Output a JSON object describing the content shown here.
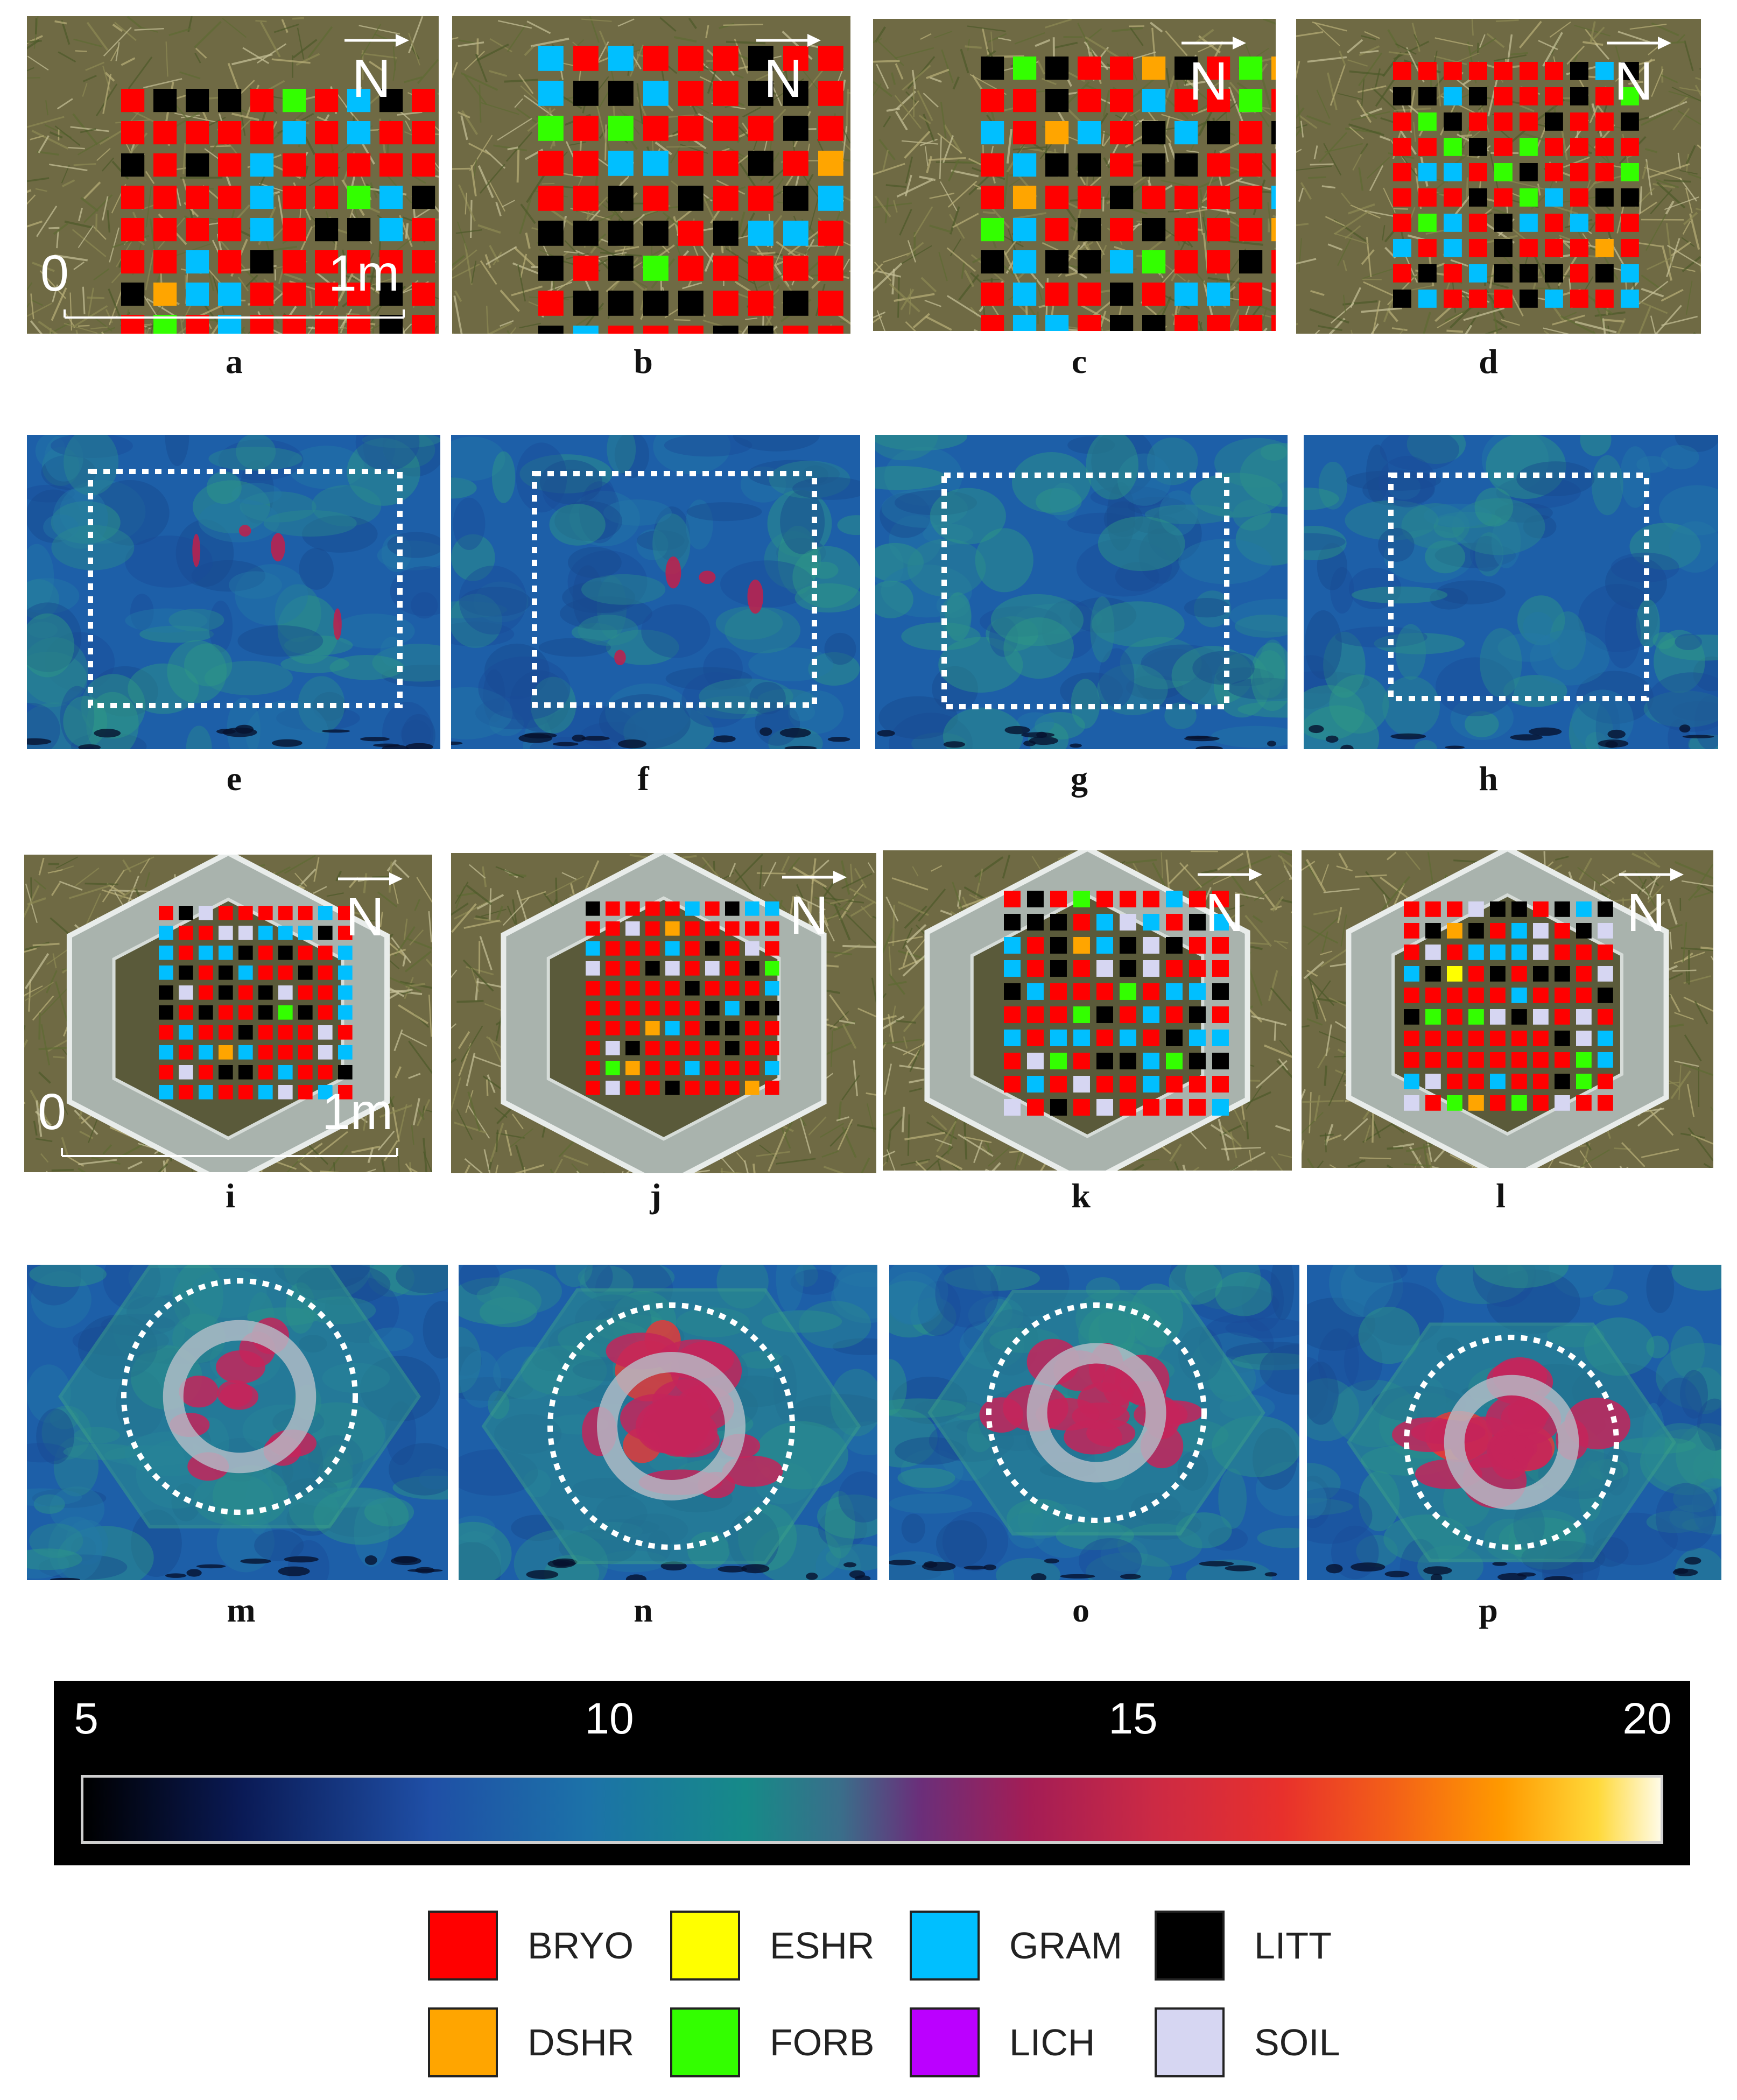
{
  "figure": {
    "panel_labels": [
      "a",
      "b",
      "c",
      "d",
      "e",
      "f",
      "g",
      "h",
      "i",
      "j",
      "k",
      "l",
      "m",
      "n",
      "o",
      "p"
    ],
    "north_label": "N",
    "scale_start": "0",
    "scale_end": "1m"
  },
  "colorbar": {
    "ticks": [
      "5",
      "10",
      "15",
      "20"
    ],
    "range": [
      5,
      20
    ]
  },
  "legend": [
    {
      "code": "BRYO",
      "color": "#ff0000"
    },
    {
      "code": "ESHR",
      "color": "#ffff00"
    },
    {
      "code": "GRAM",
      "color": "#00bfff"
    },
    {
      "code": "LITT",
      "color": "#000000"
    },
    {
      "code": "DSHR",
      "color": "#ffa500"
    },
    {
      "code": "FORB",
      "color": "#33ff00"
    },
    {
      "code": "LICH",
      "color": "#bb00ff"
    },
    {
      "code": "SOIL",
      "color": "#d6d6f2"
    }
  ]
}
